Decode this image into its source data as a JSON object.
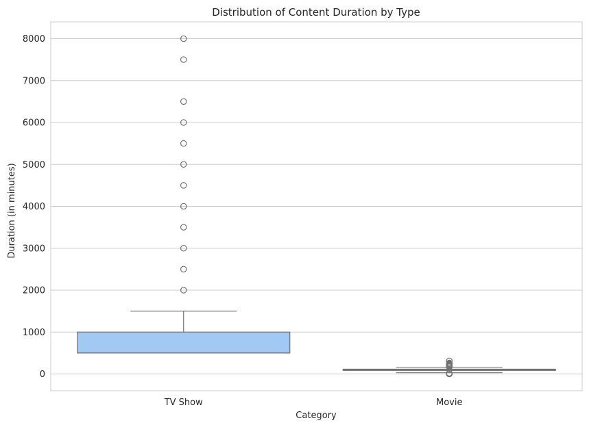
{
  "chart_data": {
    "type": "box",
    "title": "Distribution of Content Duration by Type",
    "xlabel": "Category",
    "ylabel": "Duration (in minutes)",
    "categories": [
      "TV Show",
      "Movie"
    ],
    "ylim": [
      -400,
      8400
    ],
    "yticks": [
      0,
      1000,
      2000,
      3000,
      4000,
      5000,
      6000,
      7000,
      8000
    ],
    "grid": "y",
    "boxes": [
      {
        "category": "TV Show",
        "whisker_low": 500,
        "q1": 500,
        "median": 500,
        "q3": 1000,
        "whisker_high": 1500,
        "fill": "#a1c9f4",
        "outliers": [
          2000,
          2500,
          3000,
          3500,
          4000,
          4500,
          5000,
          5500,
          6000,
          6500,
          7500,
          8000
        ]
      },
      {
        "category": "Movie",
        "whisker_low": 30,
        "q1": 85,
        "median": 98,
        "q3": 115,
        "whisker_high": 160,
        "fill": "#ffb482",
        "outliers": [
          0,
          5,
          10,
          15,
          20,
          170,
          180,
          190,
          200,
          210,
          220,
          230,
          240,
          250,
          260,
          312
        ]
      }
    ],
    "colors": {
      "line": "#727272",
      "grid": "#cccccc",
      "spine": "#cccccc"
    }
  }
}
